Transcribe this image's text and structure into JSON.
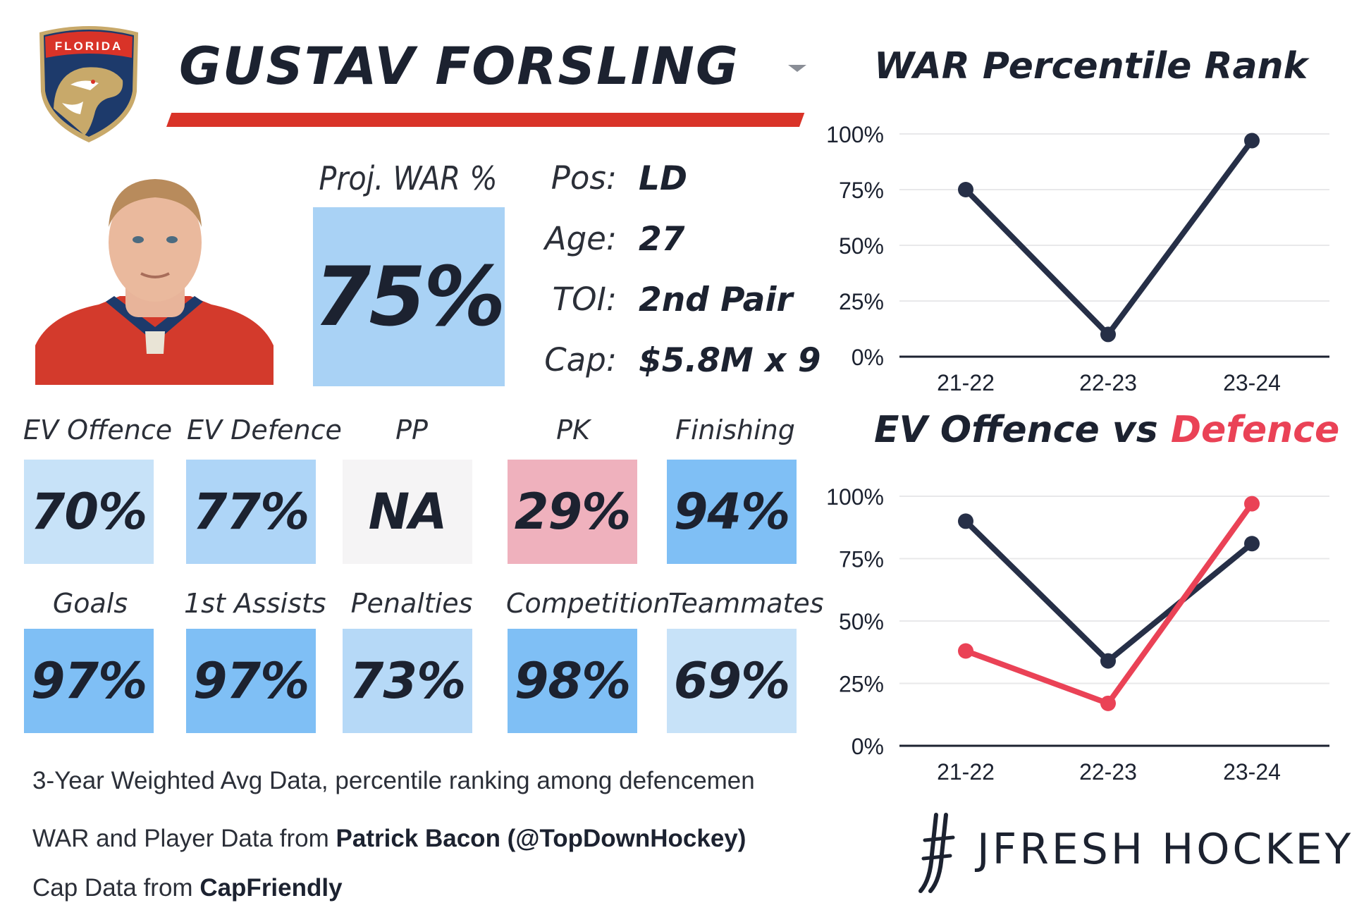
{
  "header": {
    "player_name": "GUSTAV FORSLING",
    "team_logo": {
      "icon": "panther-crest-icon",
      "text": "FLORIDA"
    },
    "accent_color": "#d93328"
  },
  "proj_war": {
    "label": "Proj. WAR %",
    "value": "75%"
  },
  "info": [
    {
      "label": "Pos:",
      "value": "LD"
    },
    {
      "label": "Age:",
      "value": "27"
    },
    {
      "label": "TOI:",
      "value": "2nd Pair"
    },
    {
      "label": "Cap:",
      "value": "$5.8M x 9"
    }
  ],
  "stats_row1": [
    {
      "label": "EV Offence",
      "value": "70%",
      "color": "#c7e2f8"
    },
    {
      "label": "EV Defence",
      "value": "77%",
      "color": "#aed5f7"
    },
    {
      "label": "PP",
      "value": "NA",
      "color": "#f5f4f5"
    },
    {
      "label": "PK",
      "value": "29%",
      "color": "#efb1bd"
    },
    {
      "label": "Finishing",
      "value": "94%",
      "color": "#7fbff5"
    }
  ],
  "stats_row2": [
    {
      "label": "Goals",
      "value": "97%",
      "color": "#7fbff5"
    },
    {
      "label": "1st Assists",
      "value": "97%",
      "color": "#7fbff5"
    },
    {
      "label": "Penalties",
      "value": "73%",
      "color": "#b6d9f7"
    },
    {
      "label": "Competition",
      "value": "98%",
      "color": "#7fbff5"
    },
    {
      "label": "Teammates",
      "value": "69%",
      "color": "#c7e2f8"
    }
  ],
  "footnotes": {
    "line1": "3-Year Weighted Avg Data, percentile ranking among defencemen",
    "line2_prefix": "WAR and Player Data from ",
    "line2_bold": "Patrick Bacon (@TopDownHockey)",
    "line3_prefix": "Cap Data from ",
    "line3_bold": "CapFriendly"
  },
  "chart_data": [
    {
      "type": "line",
      "title": "WAR Percentile Rank",
      "categories": [
        "21-22",
        "22-23",
        "23-24"
      ],
      "yticks": [
        "0%",
        "25%",
        "50%",
        "75%",
        "100%"
      ],
      "ylim": [
        0,
        100
      ],
      "grid": true,
      "series": [
        {
          "values": [
            75,
            10,
            97
          ],
          "color": "#262f47"
        }
      ]
    },
    {
      "type": "line",
      "title_part1": "EV Offence vs ",
      "title_part2": "Defence",
      "categories": [
        "21-22",
        "22-23",
        "23-24"
      ],
      "yticks": [
        "0%",
        "25%",
        "50%",
        "75%",
        "100%"
      ],
      "ylim": [
        0,
        100
      ],
      "grid": true,
      "series": [
        {
          "values": [
            90,
            34,
            81
          ],
          "color": "#262f47"
        },
        {
          "values": [
            38,
            17,
            97
          ],
          "color": "#ea4256"
        }
      ]
    }
  ],
  "brand": {
    "name": "JFRESH HOCKEY"
  }
}
